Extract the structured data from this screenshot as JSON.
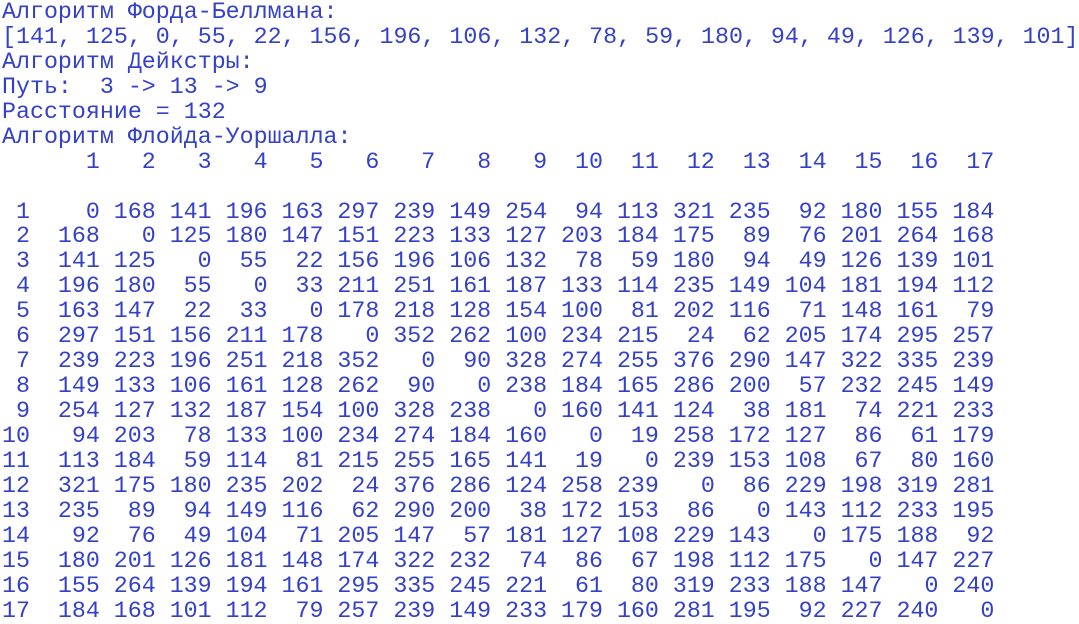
{
  "console": {
    "bellman_title": "Алгоритм Форда-Беллмана:",
    "bellman_result": "[141, 125, 0, 55, 22, 156, 196, 106, 132, 78, 59, 180, 94, 49, 126, 139, 101]",
    "dijkstra_title": "Алгоритм Дейкстры:",
    "dijkstra_path": "Путь:  3 -> 13 -> 9",
    "dijkstra_distance": "Расстояние = 132",
    "floyd_title": "Алгоритм Флойда-Уоршалла:",
    "matrix": {
      "column_labels": [
        1,
        2,
        3,
        4,
        5,
        6,
        7,
        8,
        9,
        10,
        11,
        12,
        13,
        14,
        15,
        16,
        17
      ],
      "rows": [
        {
          "label": 1,
          "values": [
            0,
            168,
            141,
            196,
            163,
            297,
            239,
            149,
            254,
            94,
            113,
            321,
            235,
            92,
            180,
            155,
            184
          ]
        },
        {
          "label": 2,
          "values": [
            168,
            0,
            125,
            180,
            147,
            151,
            223,
            133,
            127,
            203,
            184,
            175,
            89,
            76,
            201,
            264,
            168
          ]
        },
        {
          "label": 3,
          "values": [
            141,
            125,
            0,
            55,
            22,
            156,
            196,
            106,
            132,
            78,
            59,
            180,
            94,
            49,
            126,
            139,
            101
          ]
        },
        {
          "label": 4,
          "values": [
            196,
            180,
            55,
            0,
            33,
            211,
            251,
            161,
            187,
            133,
            114,
            235,
            149,
            104,
            181,
            194,
            112
          ]
        },
        {
          "label": 5,
          "values": [
            163,
            147,
            22,
            33,
            0,
            178,
            218,
            128,
            154,
            100,
            81,
            202,
            116,
            71,
            148,
            161,
            79
          ]
        },
        {
          "label": 6,
          "values": [
            297,
            151,
            156,
            211,
            178,
            0,
            352,
            262,
            100,
            234,
            215,
            24,
            62,
            205,
            174,
            295,
            257
          ]
        },
        {
          "label": 7,
          "values": [
            239,
            223,
            196,
            251,
            218,
            352,
            0,
            90,
            328,
            274,
            255,
            376,
            290,
            147,
            322,
            335,
            239
          ]
        },
        {
          "label": 8,
          "values": [
            149,
            133,
            106,
            161,
            128,
            262,
            90,
            0,
            238,
            184,
            165,
            286,
            200,
            57,
            232,
            245,
            149
          ]
        },
        {
          "label": 9,
          "values": [
            254,
            127,
            132,
            187,
            154,
            100,
            328,
            238,
            0,
            160,
            141,
            124,
            38,
            181,
            74,
            221,
            233
          ]
        },
        {
          "label": 10,
          "values": [
            94,
            203,
            78,
            133,
            100,
            234,
            274,
            184,
            160,
            0,
            19,
            258,
            172,
            127,
            86,
            61,
            179
          ]
        },
        {
          "label": 11,
          "values": [
            113,
            184,
            59,
            114,
            81,
            215,
            255,
            165,
            141,
            19,
            0,
            239,
            153,
            108,
            67,
            80,
            160
          ]
        },
        {
          "label": 12,
          "values": [
            321,
            175,
            180,
            235,
            202,
            24,
            376,
            286,
            124,
            258,
            239,
            0,
            86,
            229,
            198,
            319,
            281
          ]
        },
        {
          "label": 13,
          "values": [
            235,
            89,
            94,
            149,
            116,
            62,
            290,
            200,
            38,
            172,
            153,
            86,
            0,
            143,
            112,
            233,
            195
          ]
        },
        {
          "label": 14,
          "values": [
            92,
            76,
            49,
            104,
            71,
            205,
            147,
            57,
            181,
            127,
            108,
            229,
            143,
            0,
            175,
            188,
            92
          ]
        },
        {
          "label": 15,
          "values": [
            180,
            201,
            126,
            181,
            148,
            174,
            322,
            232,
            74,
            86,
            67,
            198,
            112,
            175,
            0,
            147,
            227
          ]
        },
        {
          "label": 16,
          "values": [
            155,
            264,
            139,
            194,
            161,
            295,
            335,
            245,
            221,
            61,
            80,
            319,
            233,
            188,
            147,
            0,
            240
          ]
        },
        {
          "label": 17,
          "values": [
            184,
            168,
            101,
            112,
            79,
            257,
            239,
            149,
            233,
            179,
            160,
            281,
            195,
            92,
            227,
            240,
            0
          ]
        }
      ]
    }
  }
}
